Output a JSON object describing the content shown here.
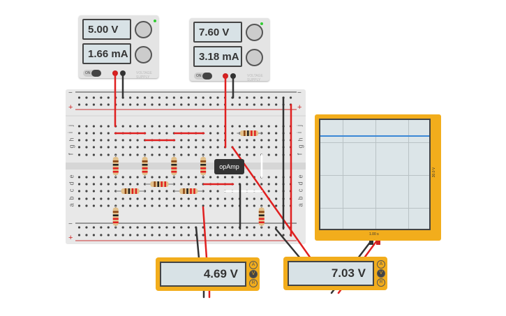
{
  "power_supplies": [
    {
      "voltage": "5.00 V",
      "current": "1.66 mA",
      "toggle": "ON",
      "label": "VOLTAGE SUPPLY"
    },
    {
      "voltage": "7.60 V",
      "current": "3.18 mA",
      "toggle": "ON",
      "label": "VOLTAGE SUPPLY"
    }
  ],
  "breadboard": {
    "row_labels_top": [
      "j",
      "i",
      "h",
      "g",
      "f"
    ],
    "row_labels_bottom": [
      "e",
      "d",
      "c",
      "b",
      "a"
    ],
    "minus": "−",
    "plus": "+"
  },
  "opamp": {
    "label": "opAmp"
  },
  "oscilloscope": {
    "volts_per_div": "30.0 V",
    "time_per_div": "1.00 s",
    "trace_color": "#3a87d6"
  },
  "multimeters": [
    {
      "reading": "4.69 V",
      "modes": [
        "A",
        "V",
        "R"
      ],
      "selected": "V"
    },
    {
      "reading": "7.03 V",
      "modes": [
        "A",
        "V",
        "R"
      ],
      "selected": "V"
    }
  ],
  "colors": {
    "wire_red": "#e02020",
    "wire_black": "#333333",
    "wire_white": "#ffffff",
    "meter_body": "#f2ad1c"
  }
}
